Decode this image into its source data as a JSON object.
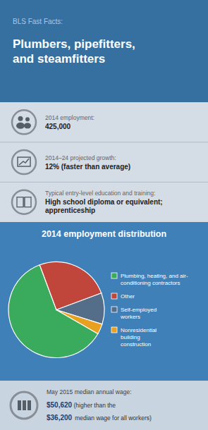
{
  "chart_data": {
    "type": "pie",
    "title": "2014 employment distribution",
    "categories": [
      "Plumbing, heating, and air-\nconditioning contractors",
      "Other",
      "Self-employed\nworkers",
      "Nonresidential\nbuilding\nconstruction"
    ],
    "values": [
      61.0,
      25.0,
      10.5,
      3.5
    ],
    "colors": [
      "#3aaa5c",
      "#c0453a",
      "#546e8a",
      "#e8a020"
    ],
    "annotations": [
      "BLS Fast Facts:",
      "Plumbers, pipefitters,\nand steamfitters",
      "2014 employment:",
      "425,000",
      "2014–24 projected growth:",
      "12% (faster than average)",
      "Typical entry-level education and training:",
      "High school diploma or equivalent;\napprenticeship",
      "May 2015 median annual wage:",
      "$50,620",
      " (higher than the ",
      "$36,200",
      "median wage for all workers)"
    ]
  }
}
